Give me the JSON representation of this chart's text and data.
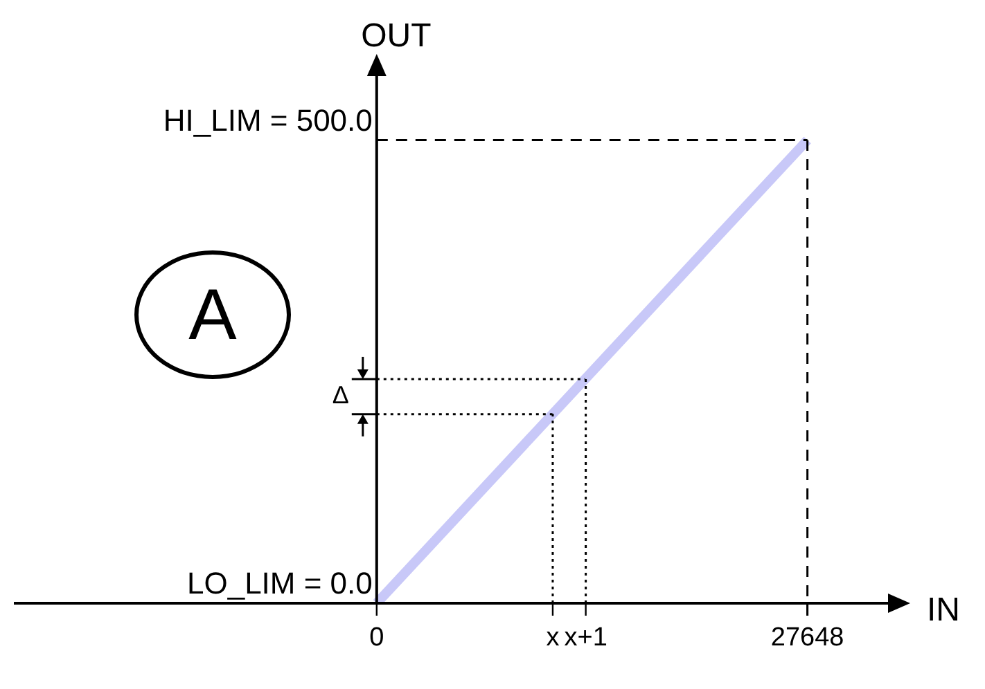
{
  "chart_data": {
    "type": "line",
    "xlabel": "IN",
    "ylabel": "OUT",
    "x": [
      0,
      27648
    ],
    "series": [
      {
        "color": "#c8c8f8",
        "values": [
          0,
          500
        ]
      }
    ],
    "marker": "none",
    "xlim": [
      -23290,
      33000
    ],
    "ylim": [
      0,
      572
    ],
    "xticks": [
      0,
      {
        "value": 11300,
        "label": "x"
      },
      {
        "value": 13420,
        "label": "x+1"
      },
      27648
    ],
    "yticks": [
      {
        "value": 0,
        "label": "LO_LIM = 0.0"
      },
      {
        "value": 500,
        "label": "HI_LIM = 500.0"
      }
    ],
    "ref_lines": [
      {
        "axis": "x",
        "value": 27648,
        "line_style": "dashed"
      },
      {
        "axis": "y",
        "value": 500,
        "line_style": "dashed"
      },
      {
        "axis": "x",
        "value": 11300,
        "line_style": "dotted"
      },
      {
        "axis": "x",
        "value": 13420,
        "line_style": "dotted"
      },
      {
        "axis": "y",
        "value": 204,
        "line_style": "dotted"
      },
      {
        "axis": "y",
        "value": 242,
        "line_style": "dotted"
      }
    ],
    "annotations": [
      "A",
      "Δ"
    ]
  }
}
